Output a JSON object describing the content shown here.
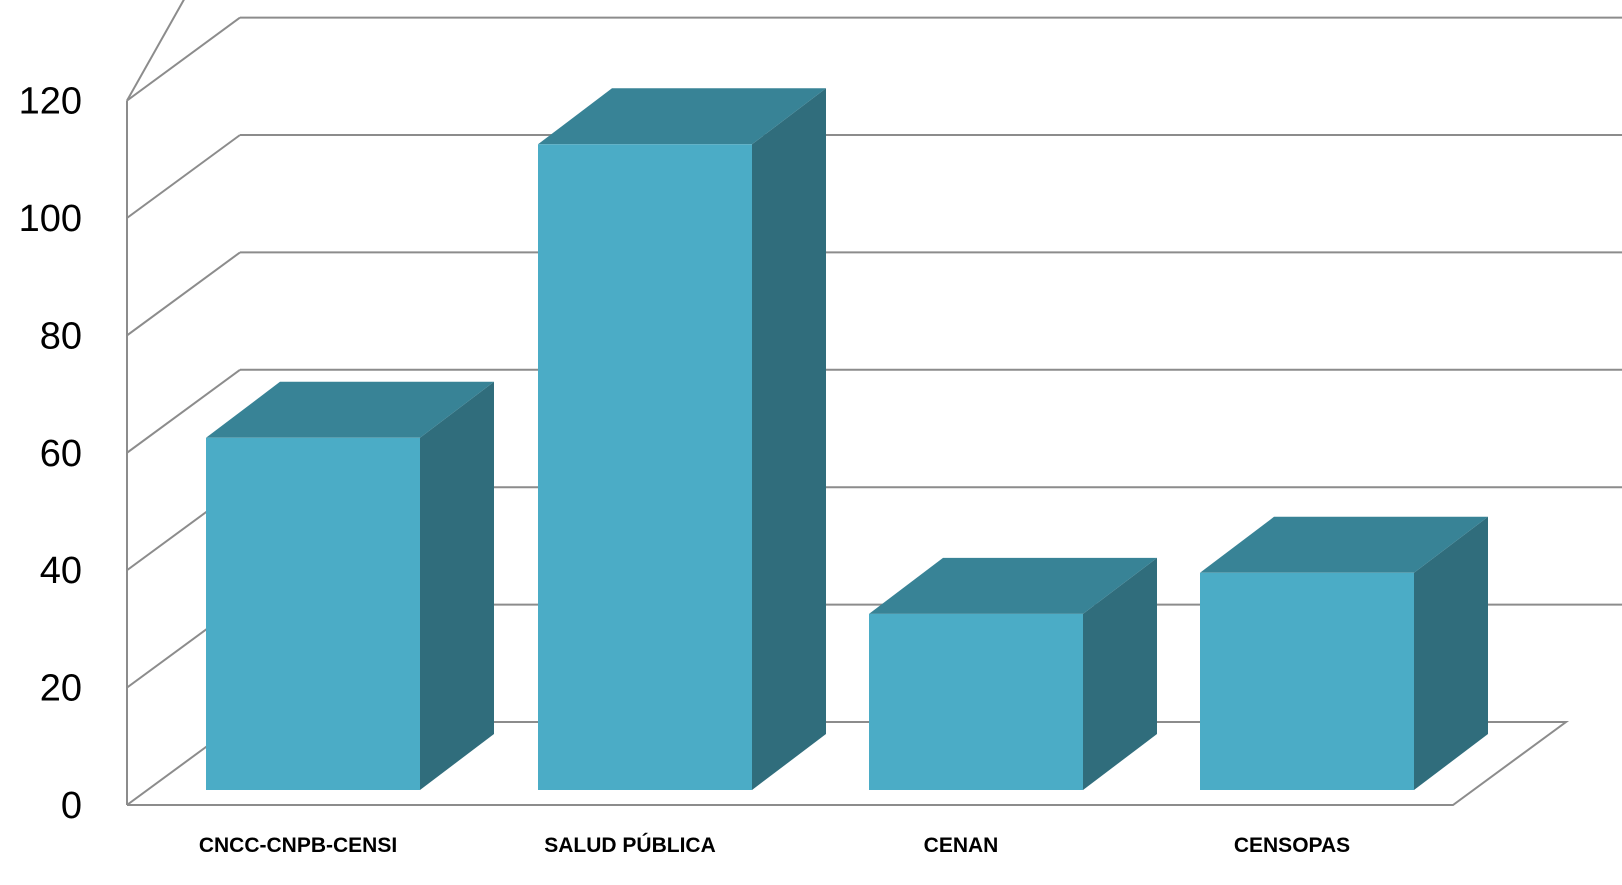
{
  "chart_data": {
    "type": "bar",
    "categories": [
      "CNCC-CNPB-CENSI",
      "SALUD PÚBLICA",
      "CENAN",
      "CENSOPAS"
    ],
    "values": [
      60,
      110,
      30,
      37
    ],
    "ylim": [
      0,
      120
    ],
    "y_ticks": [
      0,
      20,
      40,
      60,
      80,
      100,
      120
    ],
    "grid": true,
    "legend": "none",
    "colors": {
      "bar_front": "#4bacc6",
      "bar_top": "#388396",
      "bar_side": "#306d7c",
      "grid": "#8c8c8c"
    }
  }
}
